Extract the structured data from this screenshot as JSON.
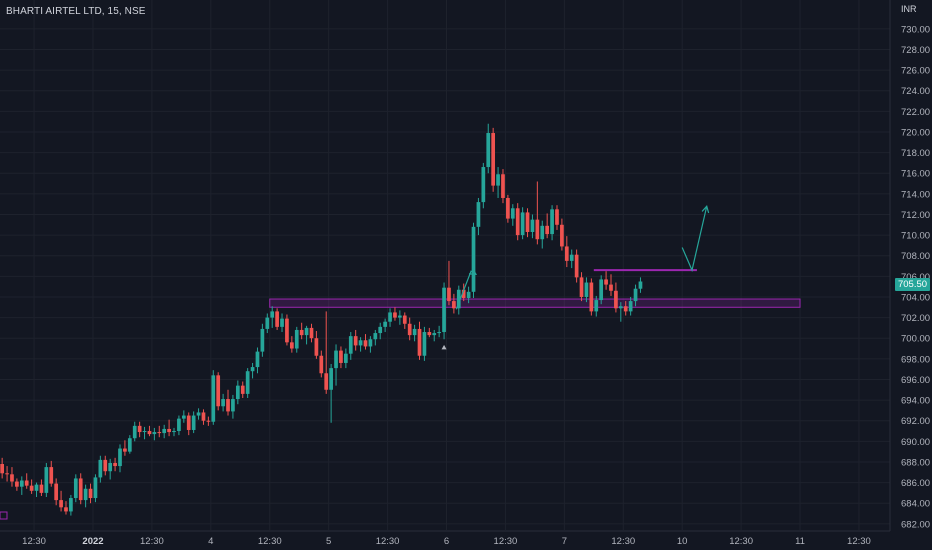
{
  "header": {
    "symbol": "BHARTI AIRTEL LTD, 15, NSE",
    "currency": "INR"
  },
  "last_price_label": "705.50",
  "colors": {
    "background": "#131722",
    "up": "#26a69a",
    "down": "#ef5350",
    "zone": "#9c27b0",
    "grid": "#1e222d",
    "axis_text": "#b2b5be"
  },
  "chart_data": {
    "type": "candlestick",
    "title": "BHARTI AIRTEL LTD, 15, NSE",
    "ylim": [
      681.4,
      732.8
    ],
    "y_ticks": [
      730,
      728,
      726,
      724,
      722,
      720,
      718,
      716,
      714,
      712,
      710,
      708,
      706,
      704,
      702,
      700,
      698,
      696,
      694,
      692,
      690,
      688,
      686,
      684,
      682
    ],
    "x_ticks": [
      {
        "label": "12:30",
        "bar": 7,
        "bold": false
      },
      {
        "label": "2022",
        "bar": 19,
        "bold": true
      },
      {
        "label": "12:30",
        "bar": 31,
        "bold": false
      },
      {
        "label": "4",
        "bar": 43,
        "bold": false
      },
      {
        "label": "12:30",
        "bar": 55,
        "bold": false
      },
      {
        "label": "5",
        "bar": 67,
        "bold": false
      },
      {
        "label": "12:30",
        "bar": 79,
        "bold": false
      },
      {
        "label": "6",
        "bar": 91,
        "bold": false
      },
      {
        "label": "12:30",
        "bar": 103,
        "bold": false
      },
      {
        "label": "7",
        "bar": 115,
        "bold": false
      },
      {
        "label": "12:30",
        "bar": 127,
        "bold": false
      },
      {
        "label": "10",
        "bar": 139,
        "bold": false
      },
      {
        "label": "12:30",
        "bar": 151,
        "bold": false
      },
      {
        "label": "11",
        "bar": 163,
        "bold": false
      },
      {
        "label": "12:30",
        "bar": 175,
        "bold": false
      }
    ],
    "candles": [
      [
        687.8,
        688.4,
        686.4,
        686.9
      ],
      [
        686.9,
        687.6,
        686.1,
        686.8
      ],
      [
        686.8,
        687.5,
        685.6,
        686.1
      ],
      [
        686.1,
        686.4,
        685.2,
        685.6
      ],
      [
        685.6,
        686.6,
        684.8,
        686.2
      ],
      [
        686.2,
        686.9,
        685.4,
        685.7
      ],
      [
        685.7,
        686.3,
        684.9,
        685.2
      ],
      [
        685.2,
        686.0,
        684.6,
        685.8
      ],
      [
        685.8,
        686.3,
        684.7,
        685.0
      ],
      [
        685.0,
        687.9,
        684.6,
        687.5
      ],
      [
        687.5,
        688.1,
        685.6,
        685.9
      ],
      [
        685.9,
        686.4,
        683.8,
        684.3
      ],
      [
        684.3,
        685.2,
        683.2,
        683.6
      ],
      [
        683.6,
        684.2,
        682.9,
        683.2
      ],
      [
        683.2,
        684.8,
        682.8,
        684.5
      ],
      [
        684.5,
        686.8,
        684.1,
        686.4
      ],
      [
        686.4,
        686.9,
        683.9,
        684.3
      ],
      [
        684.3,
        685.8,
        683.6,
        685.4
      ],
      [
        685.4,
        685.9,
        684.0,
        684.5
      ],
      [
        684.5,
        686.8,
        684.1,
        686.5
      ],
      [
        686.5,
        688.6,
        686.0,
        688.2
      ],
      [
        688.2,
        688.6,
        686.7,
        687.1
      ],
      [
        687.1,
        688.3,
        686.3,
        687.9
      ],
      [
        687.9,
        688.4,
        687.1,
        687.6
      ],
      [
        687.6,
        689.7,
        687.0,
        689.3
      ],
      [
        689.3,
        690.1,
        688.6,
        689.0
      ],
      [
        689.0,
        690.6,
        688.8,
        690.3
      ],
      [
        690.3,
        691.9,
        690.0,
        691.5
      ],
      [
        691.5,
        691.9,
        690.4,
        690.9
      ],
      [
        690.9,
        691.4,
        690.2,
        691.0
      ],
      [
        691.0,
        691.5,
        690.5,
        690.7
      ],
      [
        690.7,
        691.3,
        690.1,
        690.9
      ],
      [
        690.9,
        691.5,
        690.4,
        690.8
      ],
      [
        690.8,
        691.6,
        690.3,
        691.2
      ],
      [
        691.2,
        692.1,
        690.5,
        690.9
      ],
      [
        690.9,
        691.3,
        690.5,
        691.0
      ],
      [
        691.0,
        692.5,
        690.6,
        692.2
      ],
      [
        692.2,
        693.0,
        691.8,
        692.5
      ],
      [
        692.5,
        692.8,
        690.6,
        691.1
      ],
      [
        691.1,
        692.9,
        690.8,
        692.5
      ],
      [
        692.5,
        693.2,
        692.1,
        692.8
      ],
      [
        692.8,
        693.1,
        691.6,
        692.0
      ],
      [
        692.0,
        692.4,
        691.5,
        691.9
      ],
      [
        691.9,
        696.9,
        691.6,
        696.4
      ],
      [
        696.4,
        696.7,
        693.0,
        693.4
      ],
      [
        693.4,
        694.6,
        692.9,
        694.1
      ],
      [
        694.1,
        695.0,
        692.5,
        692.9
      ],
      [
        692.9,
        694.5,
        692.2,
        694.1
      ],
      [
        694.1,
        695.9,
        693.6,
        695.4
      ],
      [
        695.4,
        695.8,
        694.2,
        694.6
      ],
      [
        694.6,
        697.1,
        694.2,
        696.8
      ],
      [
        696.8,
        697.6,
        696.1,
        697.2
      ],
      [
        697.2,
        699.1,
        696.6,
        698.7
      ],
      [
        698.7,
        701.4,
        698.2,
        700.9
      ],
      [
        700.9,
        702.4,
        700.5,
        702.0
      ],
      [
        702.0,
        703.1,
        701.0,
        702.6
      ],
      [
        702.6,
        702.9,
        700.8,
        701.1
      ],
      [
        701.1,
        702.4,
        700.6,
        701.9
      ],
      [
        701.9,
        702.3,
        699.3,
        699.6
      ],
      [
        699.6,
        700.2,
        698.6,
        699.0
      ],
      [
        699.0,
        701.1,
        698.6,
        700.8
      ],
      [
        700.8,
        701.5,
        699.9,
        700.3
      ],
      [
        700.3,
        701.2,
        699.4,
        701.0
      ],
      [
        701.0,
        701.4,
        699.6,
        700.0
      ],
      [
        700.0,
        700.7,
        698.0,
        698.3
      ],
      [
        698.3,
        698.8,
        696.2,
        696.6
      ],
      [
        696.6,
        702.6,
        694.6,
        695.0
      ],
      [
        695.0,
        697.5,
        691.8,
        697.1
      ],
      [
        697.1,
        699.4,
        695.4,
        698.8
      ],
      [
        698.8,
        699.2,
        697.1,
        697.6
      ],
      [
        697.6,
        699.0,
        697.1,
        698.5
      ],
      [
        698.5,
        700.6,
        697.9,
        700.2
      ],
      [
        700.2,
        700.8,
        698.8,
        699.3
      ],
      [
        699.3,
        700.1,
        698.7,
        699.8
      ],
      [
        699.8,
        700.4,
        698.9,
        699.2
      ],
      [
        699.2,
        700.2,
        698.6,
        699.9
      ],
      [
        699.9,
        700.8,
        699.3,
        700.5
      ],
      [
        700.5,
        701.5,
        699.9,
        701.1
      ],
      [
        701.1,
        701.9,
        700.6,
        701.6
      ],
      [
        701.6,
        702.9,
        701.1,
        702.5
      ],
      [
        702.5,
        703.0,
        701.7,
        702.0
      ],
      [
        702.0,
        702.7,
        701.3,
        702.2
      ],
      [
        702.2,
        702.5,
        700.9,
        701.4
      ],
      [
        701.4,
        702.0,
        699.8,
        700.3
      ],
      [
        700.3,
        701.3,
        699.7,
        700.9
      ],
      [
        700.9,
        701.6,
        697.9,
        698.3
      ],
      [
        698.3,
        701.1,
        697.8,
        700.6
      ],
      [
        700.6,
        701.0,
        700.1,
        700.3
      ],
      [
        700.3,
        700.8,
        699.7,
        700.5
      ],
      [
        700.5,
        701.2,
        700.1,
        700.6
      ],
      [
        700.6,
        705.4,
        699.9,
        704.9
      ],
      [
        704.9,
        707.5,
        703.2,
        703.6
      ],
      [
        703.6,
        704.3,
        702.4,
        702.9
      ],
      [
        702.9,
        705.1,
        702.3,
        704.7
      ],
      [
        704.7,
        705.3,
        703.6,
        703.9
      ],
      [
        703.9,
        705.0,
        703.4,
        704.5
      ],
      [
        704.5,
        711.2,
        703.9,
        710.8
      ],
      [
        710.8,
        713.6,
        710.0,
        713.2
      ],
      [
        713.2,
        717.0,
        712.6,
        716.6
      ],
      [
        716.6,
        720.8,
        716.0,
        719.9
      ],
      [
        719.9,
        720.4,
        714.2,
        714.8
      ],
      [
        714.8,
        716.6,
        713.6,
        715.9
      ],
      [
        715.9,
        716.4,
        713.1,
        713.6
      ],
      [
        713.6,
        713.9,
        711.2,
        711.6
      ],
      [
        711.6,
        713.0,
        710.9,
        712.6
      ],
      [
        712.6,
        713.1,
        709.5,
        710.0
      ],
      [
        710.0,
        712.7,
        709.6,
        712.2
      ],
      [
        712.2,
        712.6,
        709.8,
        710.3
      ],
      [
        710.3,
        712.0,
        709.7,
        711.5
      ],
      [
        711.5,
        715.2,
        709.1,
        709.6
      ],
      [
        709.6,
        711.4,
        708.7,
        710.9
      ],
      [
        710.9,
        712.1,
        709.7,
        710.1
      ],
      [
        710.1,
        712.9,
        709.5,
        712.5
      ],
      [
        712.5,
        712.9,
        710.5,
        711.0
      ],
      [
        711.0,
        711.6,
        708.5,
        708.9
      ],
      [
        708.9,
        709.9,
        706.9,
        707.5
      ],
      [
        707.5,
        708.6,
        706.8,
        708.1
      ],
      [
        708.1,
        708.6,
        705.4,
        705.9
      ],
      [
        705.9,
        706.4,
        703.6,
        704.0
      ],
      [
        704.0,
        705.9,
        703.5,
        705.4
      ],
      [
        705.4,
        705.8,
        702.2,
        702.6
      ],
      [
        702.6,
        704.1,
        702.1,
        703.7
      ],
      [
        703.7,
        706.1,
        703.3,
        705.7
      ],
      [
        705.7,
        706.5,
        704.7,
        705.2
      ],
      [
        705.2,
        706.2,
        704.1,
        704.6
      ],
      [
        704.6,
        705.4,
        702.5,
        702.9
      ],
      [
        702.9,
        703.5,
        701.6,
        703.1
      ],
      [
        703.1,
        703.6,
        702.2,
        702.6
      ],
      [
        702.6,
        704.0,
        702.2,
        703.6
      ],
      [
        703.6,
        705.2,
        703.1,
        704.8
      ],
      [
        704.8,
        705.9,
        704.4,
        705.5
      ]
    ],
    "markers": [
      {
        "bar": 90,
        "price": 699.5,
        "shape": "triangle-up"
      }
    ],
    "zones": [
      {
        "from_bar": 55,
        "to_bar": 163,
        "top": 703.8,
        "bottom": 703.0,
        "color": "#9c27b0"
      },
      {
        "from_bar": 121,
        "to_bar": 142,
        "top": 706.6,
        "bottom": 706.6,
        "color": "#9c27b0"
      }
    ],
    "projections": [
      {
        "color": "#26a69a",
        "points": [
          [
            93,
            702.8
          ],
          [
            96,
            706.5
          ],
          [
            97,
            706.2
          ]
        ]
      },
      {
        "color": "#26a69a",
        "points": [
          [
            139,
            708.8
          ],
          [
            141,
            706.6
          ],
          [
            144,
            712.8
          ]
        ]
      }
    ]
  }
}
